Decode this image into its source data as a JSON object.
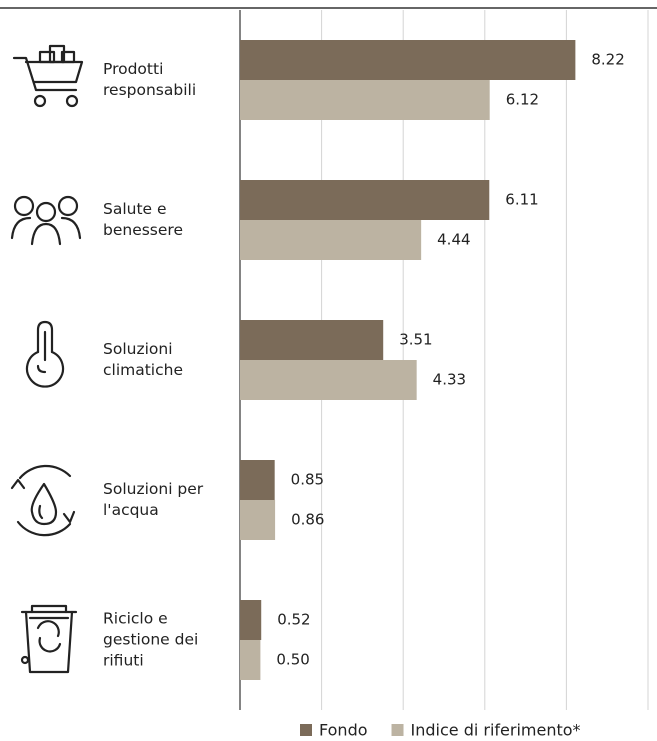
{
  "chart_data": {
    "type": "bar",
    "orientation": "horizontal",
    "categories": [
      "Prodotti responsabili",
      "Salute e benessere",
      "Soluzioni climatiche",
      "Soluzioni per l'acqua",
      "Riciclo e gestione dei rifiuti"
    ],
    "series": [
      {
        "name": "Fondo",
        "color": "#7b6b59",
        "values": [
          8.22,
          6.11,
          3.51,
          0.85,
          0.52
        ]
      },
      {
        "name": "Indice di riferimento*",
        "color": "#bcb3a2",
        "values": [
          6.12,
          4.44,
          4.33,
          0.86,
          0.5
        ],
        "value_labels": [
          "6.12",
          "4.44",
          "4.33",
          "0.86",
          "0.50"
        ]
      }
    ],
    "xlim": [
      0,
      10
    ],
    "xticks": [
      0,
      2,
      4,
      6,
      8,
      10
    ],
    "grid": true,
    "legend": "bottom"
  }
}
